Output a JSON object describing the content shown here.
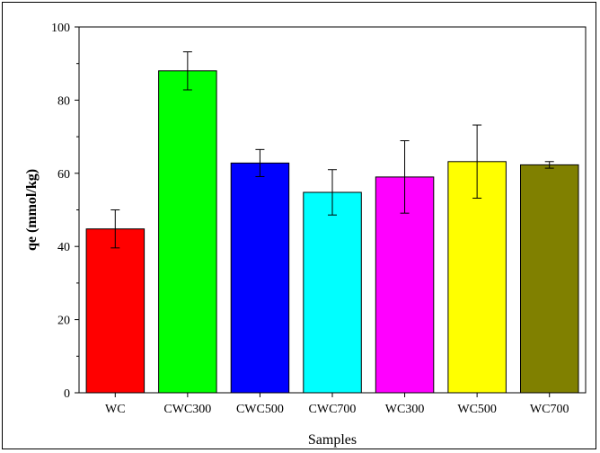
{
  "chart_data": {
    "type": "bar",
    "categories": [
      "WC",
      "CWC300",
      "CWC500",
      "CWC700",
      "WC300",
      "WC500",
      "WC700"
    ],
    "values": [
      44.8,
      88.0,
      62.8,
      54.8,
      59.0,
      63.2,
      62.3
    ],
    "errors": [
      5.2,
      5.2,
      3.7,
      6.2,
      9.9,
      10.0,
      0.9
    ],
    "colors": [
      "#ff0000",
      "#00ff00",
      "#0000ff",
      "#00ffff",
      "#ff00ff",
      "#ffff00",
      "#808000"
    ],
    "xlabel": "Samples",
    "ylabel": "qe (mmol/kg)",
    "ylim": [
      0,
      100
    ],
    "yticks": [
      0,
      20,
      40,
      60,
      80,
      100
    ],
    "grid": false,
    "legend": "none"
  }
}
